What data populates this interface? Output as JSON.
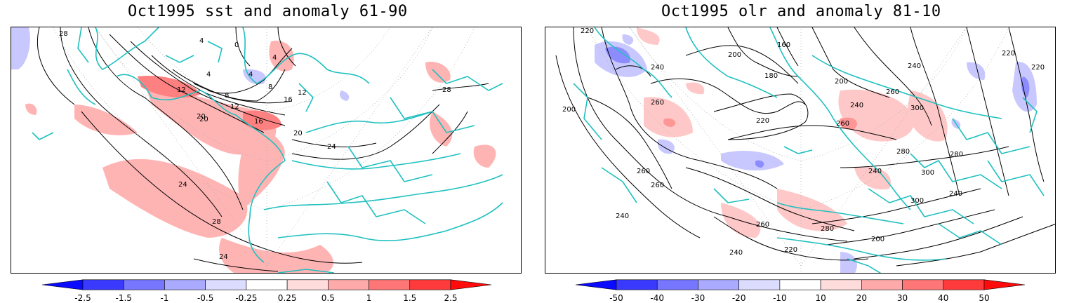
{
  "panels": [
    {
      "title": "Oct1995 sst and anomaly 61-90",
      "contour_labels": [
        "28",
        "24",
        "20",
        "16",
        "12",
        "8",
        "4",
        "0",
        "4",
        "8",
        "12",
        "16",
        "20",
        "24",
        "28",
        "28",
        "24",
        "20",
        "12",
        "4",
        "4"
      ],
      "colorbar": {
        "ticks": [
          "-2.5",
          "-1.5",
          "-1",
          "-0.5",
          "-0.25",
          "0.25",
          "0.5",
          "1",
          "1.5",
          "2.5"
        ],
        "colors": [
          "#0b0bff",
          "#3a3aff",
          "#7676ff",
          "#aaaaff",
          "#dcdcff",
          "#ffffff",
          "#ffdcdc",
          "#ffaaaa",
          "#ff7676",
          "#ff3a3a",
          "#ff0b0b"
        ]
      }
    },
    {
      "title": "Oct1995 olr and anomaly 81-10",
      "contour_labels": [
        "220",
        "260",
        "240",
        "200",
        "180",
        "160",
        "200",
        "220",
        "240",
        "260",
        "300",
        "280",
        "260",
        "240",
        "220",
        "200",
        "200",
        "240",
        "260",
        "240",
        "220",
        "240",
        "260",
        "280",
        "300",
        "300",
        "260",
        "240",
        "220",
        "280"
      ],
      "colorbar": {
        "ticks": [
          "-50",
          "-40",
          "-30",
          "-20",
          "-10",
          "10",
          "20",
          "30",
          "40",
          "50"
        ],
        "colors": [
          "#0b0bff",
          "#3a3aff",
          "#7676ff",
          "#aaaaff",
          "#dcdcff",
          "#ffffff",
          "#ffdcdc",
          "#ffaaaa",
          "#ff7676",
          "#ff3a3a",
          "#ff0b0b"
        ]
      }
    }
  ],
  "style": {
    "coast_color": "#20c0c0",
    "contour_color": "#000000",
    "pos_anomaly": "#ffaaaa",
    "neg_anomaly": "#aaaaff"
  }
}
